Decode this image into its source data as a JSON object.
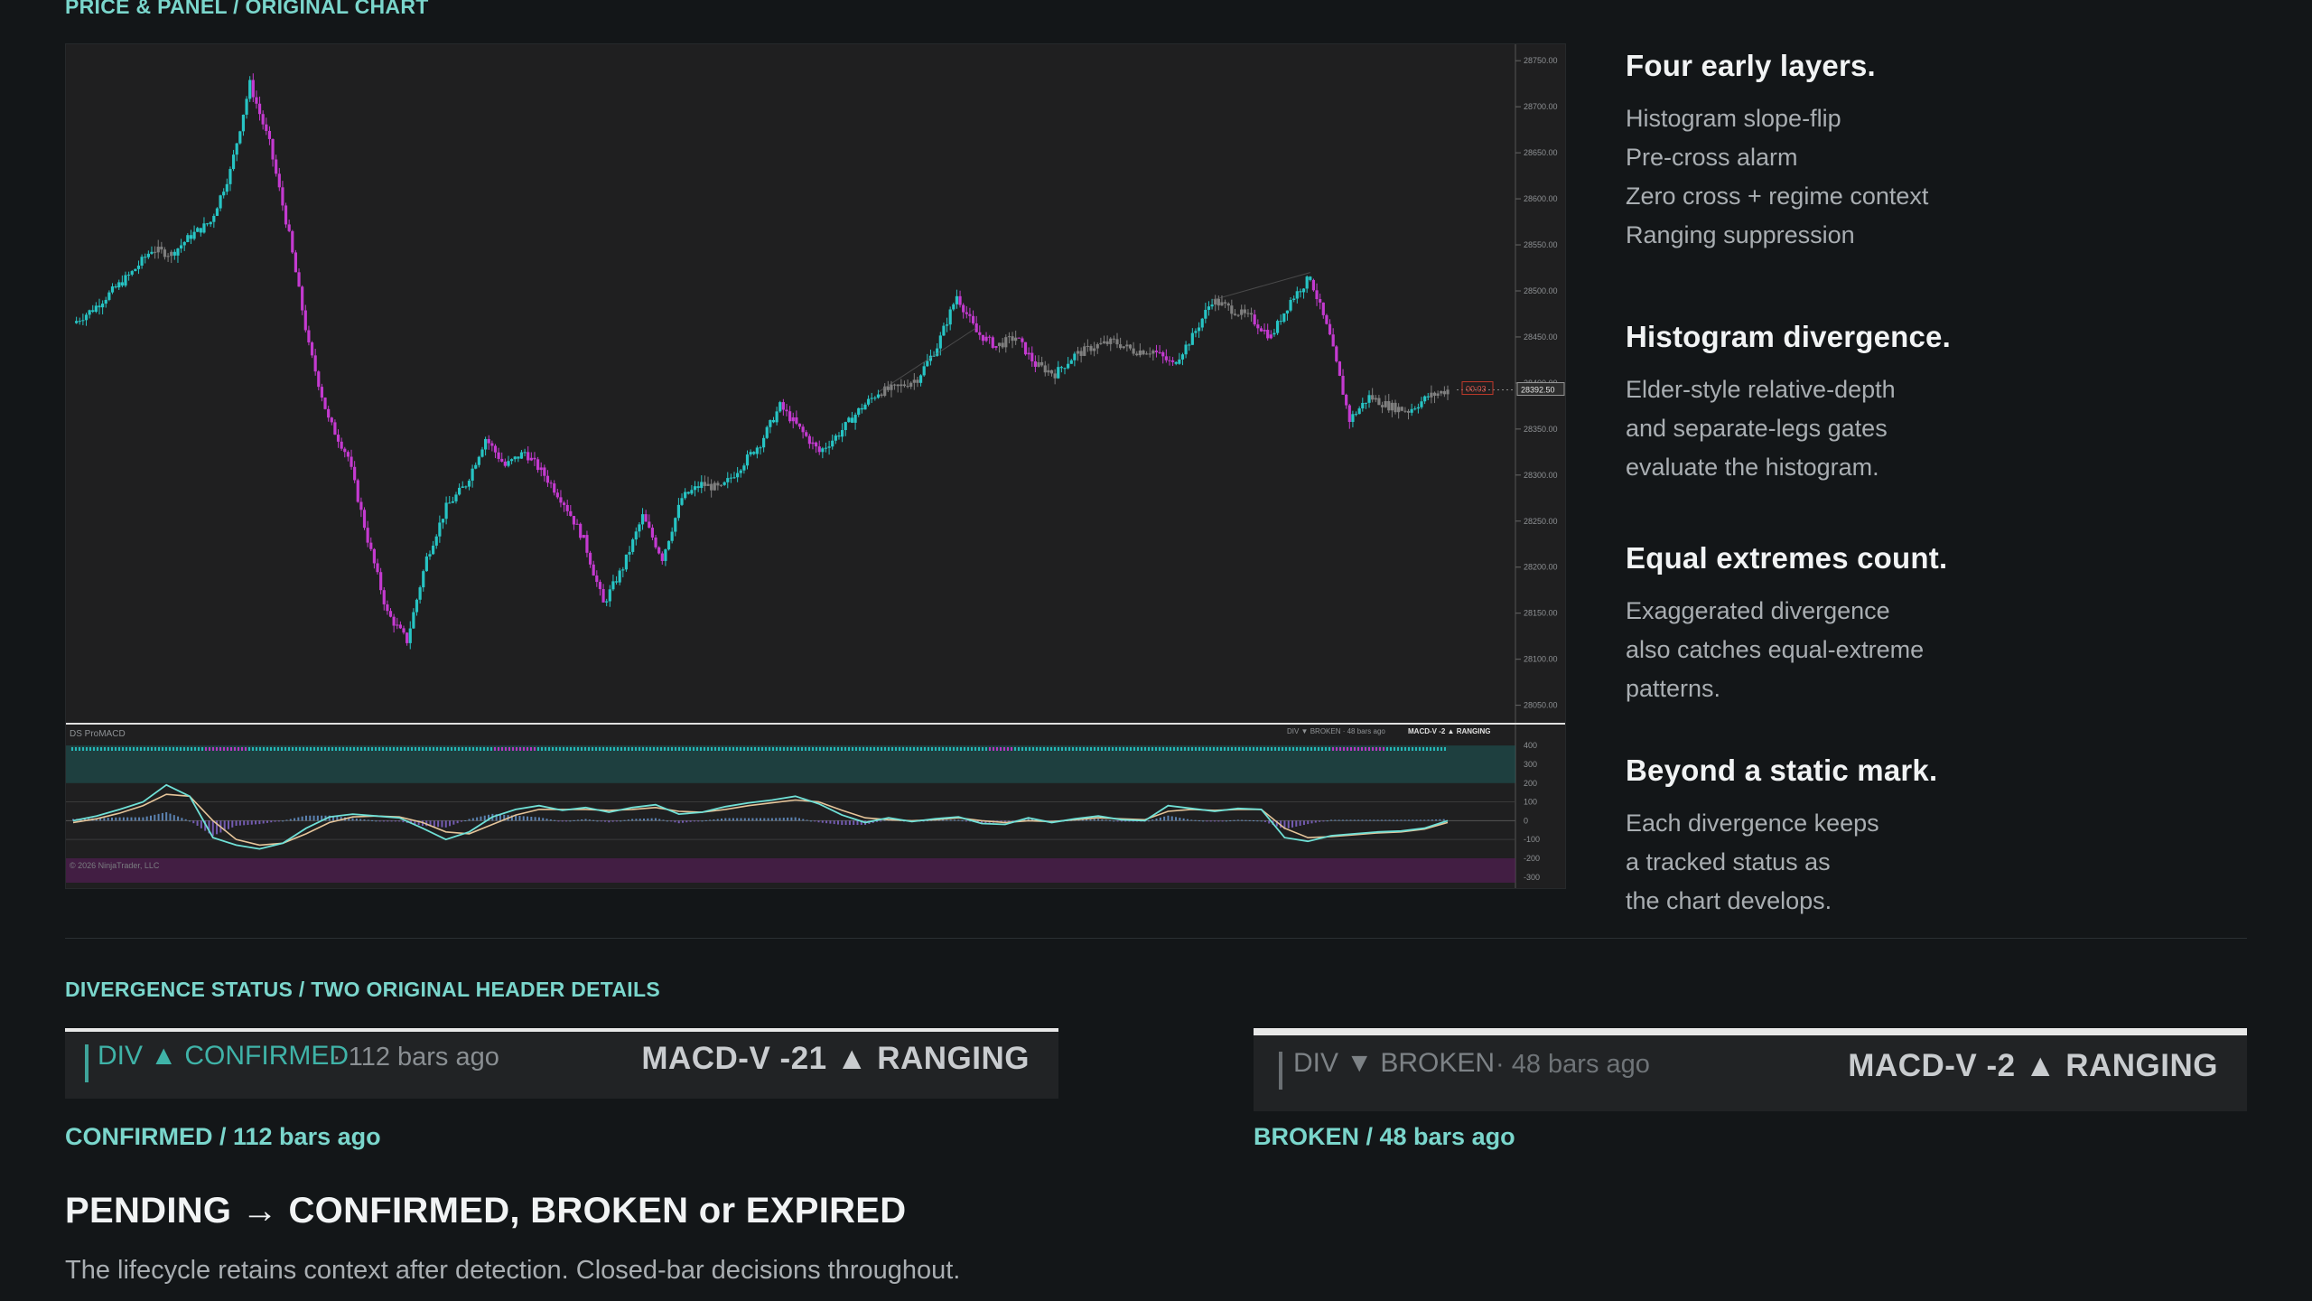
{
  "chart_section_label": "PRICE & PANEL / ORIGINAL CHART",
  "chart_panel": {
    "indicator_name": "DS ProMACD",
    "copyright": "© 2026 NinjaTrader, LLC",
    "header_mini": "DIV ▼ BROKEN · 48 bars ago",
    "header_mini_macd": "MACD-V -2 ▲ RANGING",
    "timer_label": "00:03",
    "last_price_label": "28392.50",
    "price_axis_ticks": [
      "28750.00",
      "28700.00",
      "28650.00",
      "28600.00",
      "28550.00",
      "28500.00",
      "28450.00",
      "28400.00",
      "28350.00",
      "28300.00",
      "28250.00",
      "28200.00",
      "28150.00",
      "28100.00",
      "28050.00"
    ],
    "macd_axis_ticks": [
      "400",
      "300",
      "200",
      "100",
      "0",
      "-100",
      "-200",
      "-300"
    ],
    "colors": {
      "background": "#1f1f20",
      "bull": "#27c4c4",
      "bear": "#c43ad0",
      "neutral": "#7f7f7f",
      "macd_line": "#6fe0d6",
      "signal_line": "#e6c59a",
      "overbought_zone": "#1e5a5a",
      "oversold_zone": "#5a1e5c"
    }
  },
  "chart_data": {
    "type": "line",
    "title": "",
    "price_series": {
      "name": "",
      "ylim": [
        28030,
        28760
      ],
      "points": [
        [
          0,
          28465
        ],
        [
          1,
          28480
        ],
        [
          2,
          28500
        ],
        [
          3,
          28520
        ],
        [
          4,
          28545
        ],
        [
          5,
          28540
        ],
        [
          6,
          28560
        ],
        [
          7,
          28575
        ],
        [
          8,
          28630
        ],
        [
          9,
          28725
        ],
        [
          10,
          28660
        ],
        [
          11,
          28560
        ],
        [
          12,
          28440
        ],
        [
          13,
          28360
        ],
        [
          14,
          28320
        ],
        [
          15,
          28230
        ],
        [
          16,
          28150
        ],
        [
          17,
          28120
        ],
        [
          18,
          28210
        ],
        [
          19,
          28265
        ],
        [
          20,
          28290
        ],
        [
          21,
          28340
        ],
        [
          22,
          28310
        ],
        [
          23,
          28325
        ],
        [
          24,
          28300
        ],
        [
          25,
          28270
        ],
        [
          26,
          28230
        ],
        [
          27,
          28160
        ],
        [
          28,
          28200
        ],
        [
          29,
          28255
        ],
        [
          30,
          28210
        ],
        [
          31,
          28275
        ],
        [
          32,
          28290
        ],
        [
          33,
          28285
        ],
        [
          34,
          28310
        ],
        [
          35,
          28335
        ],
        [
          36,
          28375
        ],
        [
          37,
          28350
        ],
        [
          38,
          28325
        ],
        [
          39,
          28345
        ],
        [
          40,
          28370
        ],
        [
          41,
          28390
        ],
        [
          42,
          28395
        ],
        [
          43,
          28405
        ],
        [
          44,
          28440
        ],
        [
          45,
          28495
        ],
        [
          46,
          28455
        ],
        [
          47,
          28440
        ],
        [
          48,
          28450
        ],
        [
          49,
          28420
        ],
        [
          50,
          28410
        ],
        [
          51,
          28430
        ],
        [
          52,
          28440
        ],
        [
          53,
          28445
        ],
        [
          54,
          28435
        ],
        [
          55,
          28435
        ],
        [
          56,
          28420
        ],
        [
          57,
          28450
        ],
        [
          58,
          28490
        ],
        [
          59,
          28480
        ],
        [
          60,
          28470
        ],
        [
          61,
          28450
        ],
        [
          62,
          28490
        ],
        [
          63,
          28515
        ],
        [
          64,
          28450
        ],
        [
          65,
          28360
        ],
        [
          66,
          28385
        ],
        [
          67,
          28375
        ],
        [
          68,
          28370
        ],
        [
          69,
          28385
        ],
        [
          70,
          28392.5
        ]
      ]
    },
    "macd_series": {
      "ylim": [
        -330,
        420
      ],
      "macd": [
        [
          0,
          0
        ],
        [
          1,
          25
        ],
        [
          2,
          60
        ],
        [
          3,
          100
        ],
        [
          4,
          190
        ],
        [
          5,
          130
        ],
        [
          6,
          -90
        ],
        [
          7,
          -130
        ],
        [
          8,
          -150
        ],
        [
          9,
          -120
        ],
        [
          10,
          -40
        ],
        [
          11,
          20
        ],
        [
          12,
          35
        ],
        [
          13,
          25
        ],
        [
          14,
          15
        ],
        [
          15,
          -40
        ],
        [
          16,
          -100
        ],
        [
          17,
          -60
        ],
        [
          18,
          20
        ],
        [
          19,
          60
        ],
        [
          20,
          80
        ],
        [
          21,
          55
        ],
        [
          22,
          70
        ],
        [
          23,
          45
        ],
        [
          24,
          70
        ],
        [
          25,
          85
        ],
        [
          26,
          35
        ],
        [
          27,
          45
        ],
        [
          28,
          75
        ],
        [
          29,
          95
        ],
        [
          30,
          110
        ],
        [
          31,
          130
        ],
        [
          32,
          90
        ],
        [
          33,
          30
        ],
        [
          34,
          -10
        ],
        [
          35,
          15
        ],
        [
          36,
          -5
        ],
        [
          37,
          10
        ],
        [
          38,
          20
        ],
        [
          39,
          -15
        ],
        [
          40,
          -20
        ],
        [
          41,
          15
        ],
        [
          42,
          -10
        ],
        [
          43,
          10
        ],
        [
          44,
          25
        ],
        [
          45,
          5
        ],
        [
          46,
          0
        ],
        [
          47,
          80
        ],
        [
          48,
          65
        ],
        [
          49,
          50
        ],
        [
          50,
          65
        ],
        [
          51,
          60
        ],
        [
          52,
          -90
        ],
        [
          53,
          -110
        ],
        [
          54,
          -80
        ],
        [
          55,
          -70
        ],
        [
          56,
          -60
        ],
        [
          57,
          -55
        ],
        [
          58,
          -40
        ],
        [
          59,
          0
        ]
      ],
      "signal": [
        [
          0,
          -10
        ],
        [
          1,
          10
        ],
        [
          2,
          40
        ],
        [
          3,
          80
        ],
        [
          4,
          140
        ],
        [
          5,
          130
        ],
        [
          6,
          0
        ],
        [
          7,
          -100
        ],
        [
          8,
          -130
        ],
        [
          9,
          -120
        ],
        [
          10,
          -70
        ],
        [
          11,
          -10
        ],
        [
          12,
          20
        ],
        [
          13,
          25
        ],
        [
          14,
          20
        ],
        [
          15,
          -10
        ],
        [
          16,
          -60
        ],
        [
          17,
          -70
        ],
        [
          18,
          -20
        ],
        [
          19,
          30
        ],
        [
          20,
          60
        ],
        [
          21,
          60
        ],
        [
          22,
          60
        ],
        [
          23,
          55
        ],
        [
          24,
          60
        ],
        [
          25,
          70
        ],
        [
          26,
          50
        ],
        [
          27,
          45
        ],
        [
          28,
          60
        ],
        [
          29,
          80
        ],
        [
          30,
          95
        ],
        [
          31,
          110
        ],
        [
          32,
          100
        ],
        [
          33,
          55
        ],
        [
          34,
          15
        ],
        [
          35,
          5
        ],
        [
          36,
          0
        ],
        [
          37,
          5
        ],
        [
          38,
          15
        ],
        [
          39,
          0
        ],
        [
          40,
          -10
        ],
        [
          41,
          0
        ],
        [
          42,
          -5
        ],
        [
          43,
          5
        ],
        [
          44,
          15
        ],
        [
          45,
          10
        ],
        [
          46,
          5
        ],
        [
          47,
          50
        ],
        [
          48,
          60
        ],
        [
          49,
          55
        ],
        [
          50,
          60
        ],
        [
          51,
          60
        ],
        [
          52,
          -40
        ],
        [
          53,
          -90
        ],
        [
          54,
          -85
        ],
        [
          55,
          -75
        ],
        [
          56,
          -65
        ],
        [
          57,
          -60
        ],
        [
          58,
          -45
        ],
        [
          59,
          -10
        ]
      ]
    }
  },
  "features": [
    {
      "title": "Four early layers.",
      "lines": [
        "Histogram slope-flip",
        "Pre-cross alarm",
        "Zero cross + regime context",
        "Ranging suppression"
      ]
    },
    {
      "title": "Histogram divergence.",
      "lines": [
        "Elder-style relative-depth",
        "and separate-legs gates",
        "evaluate the histogram."
      ]
    },
    {
      "title": "Equal extremes count.",
      "lines": [
        "Exaggerated divergence",
        "also catches equal-extreme",
        "patterns."
      ]
    },
    {
      "title": "Beyond a static mark.",
      "lines": [
        "Each divergence keeps",
        "a tracked status as",
        "the chart develops."
      ]
    }
  ],
  "status_section_label": "DIVERGENCE STATUS / TWO ORIGINAL HEADER DETAILS",
  "headers": [
    {
      "div_text": "DIV ▲ CONFIRMED",
      "ago": "· 112 bars ago",
      "macd_text": "MACD-V -21  ▲ RANGING",
      "caption": "CONFIRMED / 112 bars ago",
      "div_color": "#3fb3a8"
    },
    {
      "div_text": "DIV ▼ BROKEN",
      "ago": "· 48 bars ago",
      "macd_text": "MACD-V -2  ▲ RANGING",
      "caption": "BROKEN / 48 bars ago",
      "div_color": "#7d8286"
    }
  ],
  "lifecycle": {
    "title": "PENDING → CONFIRMED, BROKEN or EXPIRED",
    "description": "The lifecycle retains context after detection. Closed-bar decisions throughout."
  }
}
